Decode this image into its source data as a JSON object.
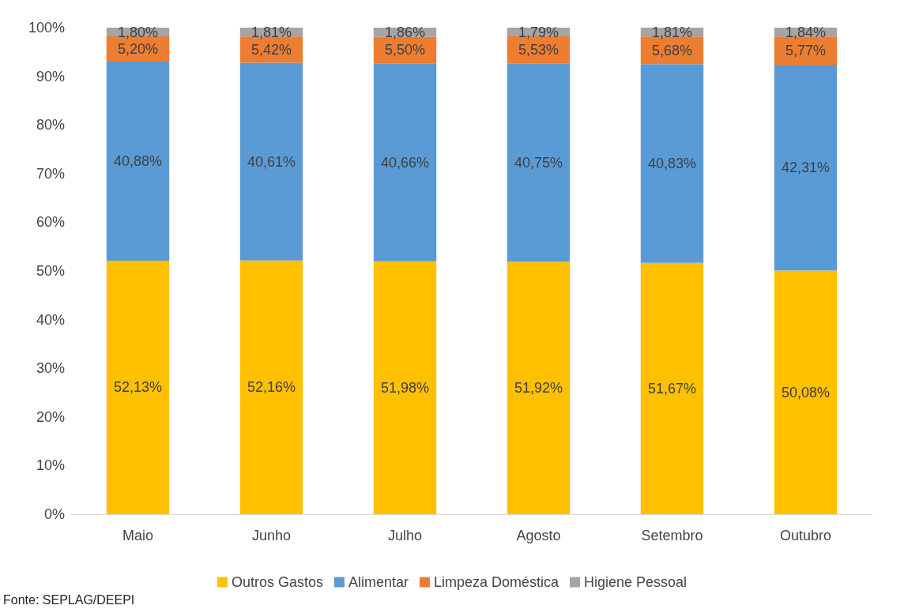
{
  "chart_data": {
    "type": "bar",
    "stacked": true,
    "categories": [
      "Maio",
      "Junho",
      "Julho",
      "Agosto",
      "Setembro",
      "Outubro"
    ],
    "series": [
      {
        "name": "Outros Gastos",
        "color": "#ffc000",
        "values": [
          52.13,
          52.16,
          51.98,
          51.92,
          51.67,
          50.08
        ],
        "value_labels": [
          "52,13%",
          "52,16%",
          "51,98%",
          "51,92%",
          "51,67%",
          "50,08%"
        ]
      },
      {
        "name": "Alimentar",
        "color": "#5b9bd5",
        "values": [
          40.88,
          40.61,
          40.66,
          40.75,
          40.83,
          42.31
        ],
        "value_labels": [
          "40,88%",
          "40,61%",
          "40,66%",
          "40,75%",
          "40,83%",
          "42,31%"
        ]
      },
      {
        "name": "Limpeza Doméstica",
        "color": "#ed7d31",
        "values": [
          5.2,
          5.42,
          5.5,
          5.53,
          5.68,
          5.77
        ],
        "value_labels": [
          "5,20%",
          "5,42%",
          "5,50%",
          "5,53%",
          "5,68%",
          "5,77%"
        ]
      },
      {
        "name": "Higiene Pessoal",
        "color": "#a5a5a5",
        "values": [
          1.8,
          1.81,
          1.86,
          1.79,
          1.81,
          1.84
        ],
        "value_labels": [
          "1,80%",
          "1,81%",
          "1,86%",
          "1,79%",
          "1,81%",
          "1,84%"
        ]
      }
    ],
    "ylim": [
      0,
      100
    ],
    "yticks": [
      {
        "value": 0,
        "label": "0%"
      },
      {
        "value": 10,
        "label": "10%"
      },
      {
        "value": 20,
        "label": "20%"
      },
      {
        "value": 30,
        "label": "30%"
      },
      {
        "value": 40,
        "label": "40%"
      },
      {
        "value": 50,
        "label": "50%"
      },
      {
        "value": 60,
        "label": "60%"
      },
      {
        "value": 70,
        "label": "70%"
      },
      {
        "value": 80,
        "label": "80%"
      },
      {
        "value": 90,
        "label": "90%"
      },
      {
        "value": 100,
        "label": "100%"
      }
    ],
    "grid": false,
    "legend": "bottom",
    "annotations": [
      "Fonte: SEPLAG/DEEPI"
    ]
  }
}
